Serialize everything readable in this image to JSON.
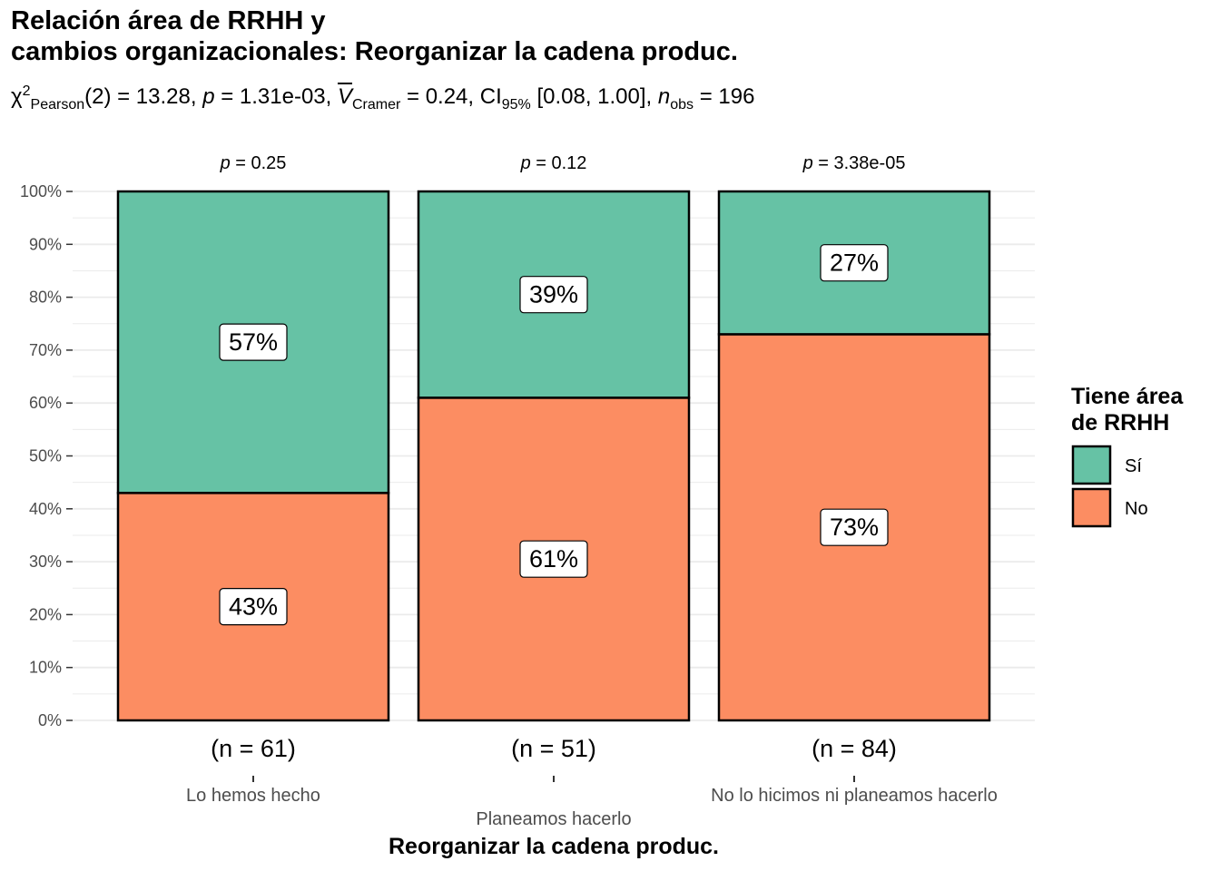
{
  "chart_data": {
    "type": "bar",
    "stacked": "percent",
    "title": [
      "Relación área de RRHH y",
      "cambios organizacionales: Reorganizar la cadena produc."
    ],
    "subtitle": {
      "chi": "χ",
      "chi_sup": "2",
      "chi_sub": "Pearson",
      "df_part": "(2) = 13.28, ",
      "p_sym": "p",
      "p_part": " = 1.31e-03, ",
      "v_sym": "V",
      "v_sub": "Cramer",
      "v_part": " = 0.24, CI",
      "ci_sub": "95%",
      "ci_part": " [0.08, 1.00], ",
      "n_sym": "n",
      "n_sub": "obs",
      "n_part": " = 196"
    },
    "xlabel": "Reorganizar la cadena produc.",
    "ylabel": "",
    "ylim": [
      0,
      100
    ],
    "yticks": [
      "0%",
      "10%",
      "20%",
      "30%",
      "40%",
      "50%",
      "60%",
      "70%",
      "80%",
      "90%",
      "100%"
    ],
    "categories": [
      "Lo hemos hecho",
      "Planeamos hacerlo",
      "No lo hicimos ni planeamos hacerlo"
    ],
    "n_labels": [
      "(n = 61)",
      "(n = 51)",
      "(n = 84)"
    ],
    "p_labels": [
      {
        "sym": "p",
        "rest": " = 0.25"
      },
      {
        "sym": "p",
        "rest": " = 0.12"
      },
      {
        "sym": "p",
        "rest": " = 3.38e-05"
      }
    ],
    "series": [
      {
        "name": "No",
        "color": "#fc8d62",
        "values": [
          43,
          61,
          73
        ],
        "labels": [
          "43%",
          "61%",
          "73%"
        ]
      },
      {
        "name": "Sí",
        "color": "#66c2a5",
        "values": [
          57,
          39,
          27
        ],
        "labels": [
          "57%",
          "39%",
          "27%"
        ]
      }
    ],
    "legend": {
      "title": [
        "Tiene área",
        "de RRHH"
      ],
      "position": "right",
      "items": [
        {
          "label": "Sí",
          "color": "#66c2a5"
        },
        {
          "label": "No",
          "color": "#fc8d62"
        }
      ]
    },
    "grid": true
  }
}
